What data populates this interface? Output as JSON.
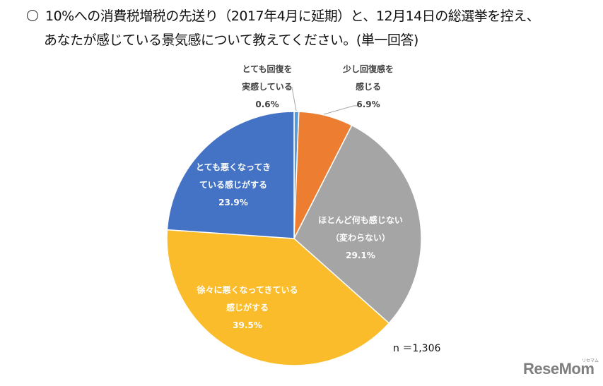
{
  "title": {
    "bullet": "○",
    "line1": "10%への消費税増税の先送り（2017年4月に延期）と、12月14日の総選挙を控え、",
    "line2": "あなたが感じている景気感について教えてください。(単一回答)"
  },
  "sample_size": "n ＝1,306",
  "logo": {
    "text": "ReseMom",
    "sub": "リセマム"
  },
  "chart_data": {
    "type": "pie",
    "title": "10%への消費税増税の先送り（2017年4月に延期）と、12月14日の総選挙を控え、あなたが感じている景気感について教えてください。(単一回答)",
    "start_angle": "12 o'clock, clockwise",
    "slices": [
      {
        "label_line1": "とても回復を",
        "label_line2": "実感している",
        "value": 0.6,
        "value_label": "0.6%",
        "color": "#5B9BD5"
      },
      {
        "label_line1": "少し回復感を",
        "label_line2": "感じる",
        "value": 6.9,
        "value_label": "6.9%",
        "color": "#ED7D31"
      },
      {
        "label_line1": "ほとんど何も感じない",
        "label_line2": "（変わらない）",
        "value": 29.1,
        "value_label": "29.1%",
        "color": "#A5A5A5"
      },
      {
        "label_line1": "徐々に悪くなってきている",
        "label_line2": "感じがする",
        "value": 39.5,
        "value_label": "39.5%",
        "color": "#FBBC2B"
      },
      {
        "label_line1": "とても悪くなってき",
        "label_line2": "ている感じがする",
        "value": 23.9,
        "value_label": "23.9%",
        "color": "#4472C4"
      }
    ],
    "annotation": "n ＝1,306",
    "legend": "none (data labels on slices)"
  }
}
